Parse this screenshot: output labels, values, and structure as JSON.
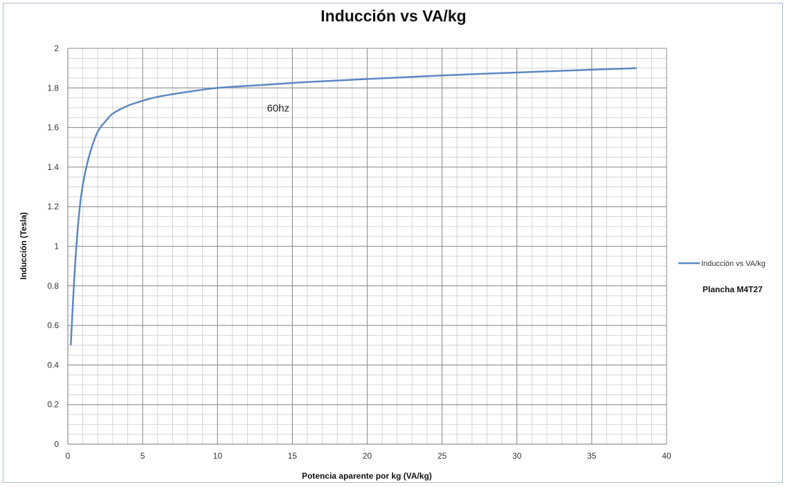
{
  "chart_data": {
    "type": "line",
    "title": "Inducción vs VA/kg",
    "xlabel": "Potencia aparente por kg (VA/kg)",
    "ylabel": "Inducción (Tesla)",
    "xlim": [
      0,
      40
    ],
    "ylim": [
      0,
      2
    ],
    "x_ticks": [
      0,
      5,
      10,
      15,
      20,
      25,
      30,
      35,
      40
    ],
    "y_ticks": [
      "0",
      "0.2",
      "0.4",
      "0.6",
      "0.8",
      "1",
      "1.2",
      "1.4",
      "1.6",
      "1.8",
      "2"
    ],
    "grid": true,
    "legend": "right",
    "series": [
      {
        "name": "Inducción vs VA/kg",
        "color": "#5b87c5",
        "x": [
          0.2,
          0.4,
          0.6,
          0.8,
          1.0,
          1.3,
          1.6,
          2.0,
          2.5,
          3.0,
          4.0,
          5.0,
          6.0,
          8.0,
          10.0,
          13.0,
          16.0,
          20.0,
          25.0,
          30.0,
          35.0,
          38.0
        ],
        "y": [
          0.5,
          0.8,
          1.03,
          1.2,
          1.31,
          1.42,
          1.5,
          1.58,
          1.63,
          1.67,
          1.71,
          1.735,
          1.755,
          1.78,
          1.8,
          1.815,
          1.83,
          1.845,
          1.863,
          1.878,
          1.892,
          1.9
        ]
      }
    ],
    "annotations": [
      {
        "text": "60hz",
        "x": 13.3,
        "y": 1.68
      }
    ],
    "note": "Plancha  M4T27"
  }
}
